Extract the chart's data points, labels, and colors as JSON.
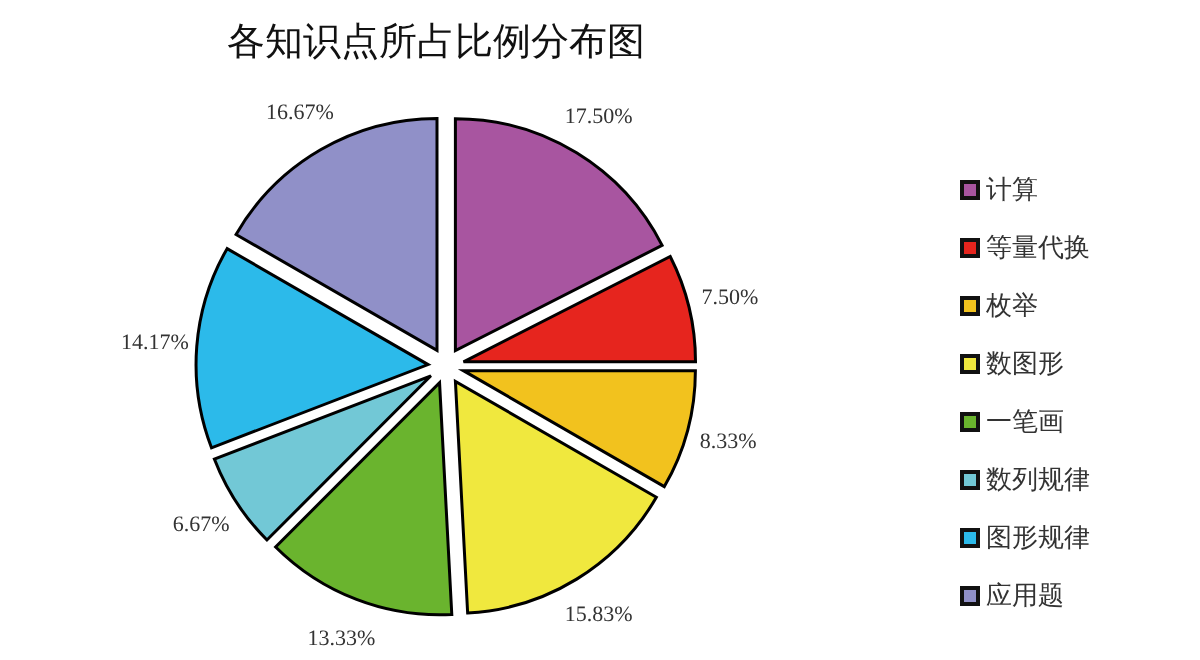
{
  "chart_data": {
    "type": "pie",
    "title": "各知识点所占比例分布图",
    "categories": [
      "计算",
      "等量代换",
      "枚举",
      "数图形",
      "一笔画",
      "数列规律",
      "图形规律",
      "应用题"
    ],
    "values": [
      17.5,
      7.5,
      8.33,
      15.83,
      13.33,
      6.67,
      14.17,
      16.67
    ],
    "value_labels": [
      "17.50%",
      "7.50%",
      "8.33%",
      "15.83%",
      "13.33%",
      "6.67%",
      "14.17%",
      "16.67%"
    ],
    "colors": [
      "#a855a0",
      "#e6251e",
      "#f2c21e",
      "#f0e83e",
      "#6ab42e",
      "#72c8d6",
      "#2cbaea",
      "#9090c8"
    ],
    "legend": "right"
  }
}
